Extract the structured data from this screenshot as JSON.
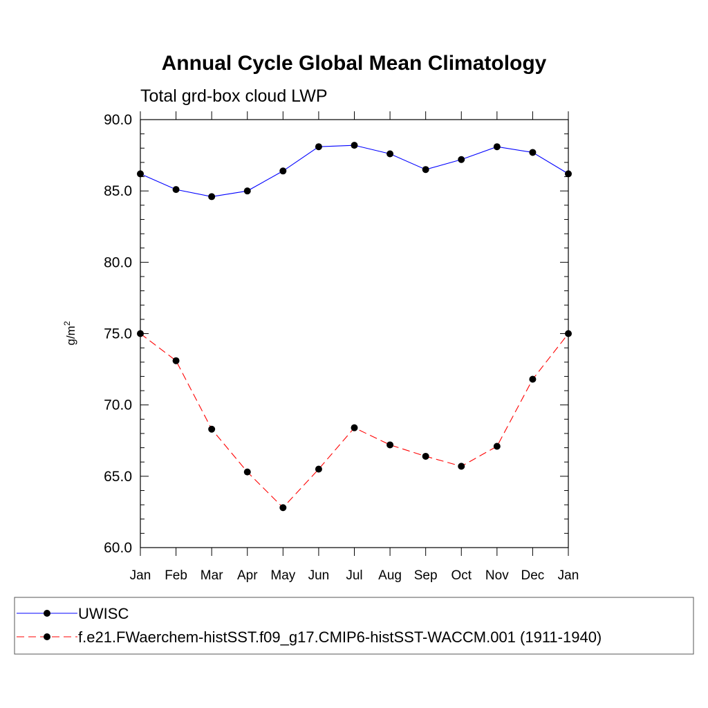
{
  "chart_data": {
    "type": "line",
    "title": "Annual Cycle Global Mean Climatology",
    "subtitle": "Total grd-box cloud LWP",
    "ylabel": "g/m",
    "ylabel_sup": "2",
    "xlabel": "",
    "categories": [
      "Jan",
      "Feb",
      "Mar",
      "Apr",
      "May",
      "Jun",
      "Jul",
      "Aug",
      "Sep",
      "Oct",
      "Nov",
      "Dec",
      "Jan"
    ],
    "ylim": [
      60.0,
      90.0
    ],
    "yticks": [
      "60.0",
      "65.0",
      "70.0",
      "75.0",
      "80.0",
      "85.0",
      "90.0"
    ],
    "grid": false,
    "legend_position": "bottom",
    "series": [
      {
        "name": "UWISC",
        "color": "#0000ff",
        "dash": "solid",
        "marker": "circle",
        "values": [
          86.2,
          85.1,
          84.6,
          85.0,
          86.4,
          88.1,
          88.2,
          87.6,
          86.5,
          87.2,
          88.1,
          87.7,
          86.2
        ]
      },
      {
        "name": "f.e21.FWaerchem-histSST.f09_g17.CMIP6-histSST-WACCM.001 (1911-1940)",
        "color": "#ff0000",
        "dash": "dashed",
        "marker": "circle",
        "values": [
          75.0,
          73.1,
          68.3,
          65.3,
          62.8,
          65.5,
          68.4,
          67.2,
          66.4,
          65.7,
          67.1,
          71.8,
          75.0
        ]
      }
    ]
  }
}
